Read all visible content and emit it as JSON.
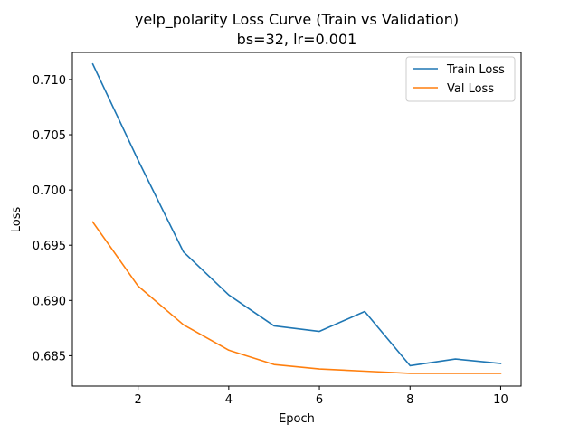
{
  "chart_data": {
    "type": "line",
    "title": "yelp_polarity Loss Curve (Train vs Validation)",
    "subtitle": "bs=32, lr=0.001",
    "xlabel": "Epoch",
    "ylabel": "Loss",
    "x": [
      1,
      2,
      3,
      4,
      5,
      6,
      7,
      8,
      9,
      10
    ],
    "xlim": [
      0.55,
      10.45
    ],
    "ylim": [
      0.68225,
      0.71245
    ],
    "xticks": [
      2,
      4,
      6,
      8,
      10
    ],
    "yticks": [
      0.685,
      0.69,
      0.695,
      0.7,
      0.705,
      0.71
    ],
    "grid": false,
    "legend_position": "top-right",
    "series": [
      {
        "name": "Train Loss",
        "color": "#1f77b4",
        "values": [
          0.7114,
          0.7027,
          0.6944,
          0.6905,
          0.6877,
          0.6872,
          0.689,
          0.6841,
          0.6847,
          0.6843
        ]
      },
      {
        "name": "Val Loss",
        "color": "#ff7f0e",
        "values": [
          0.6971,
          0.6913,
          0.6878,
          0.6855,
          0.6842,
          0.6838,
          0.6836,
          0.6834,
          0.6834,
          0.6834
        ]
      }
    ]
  }
}
